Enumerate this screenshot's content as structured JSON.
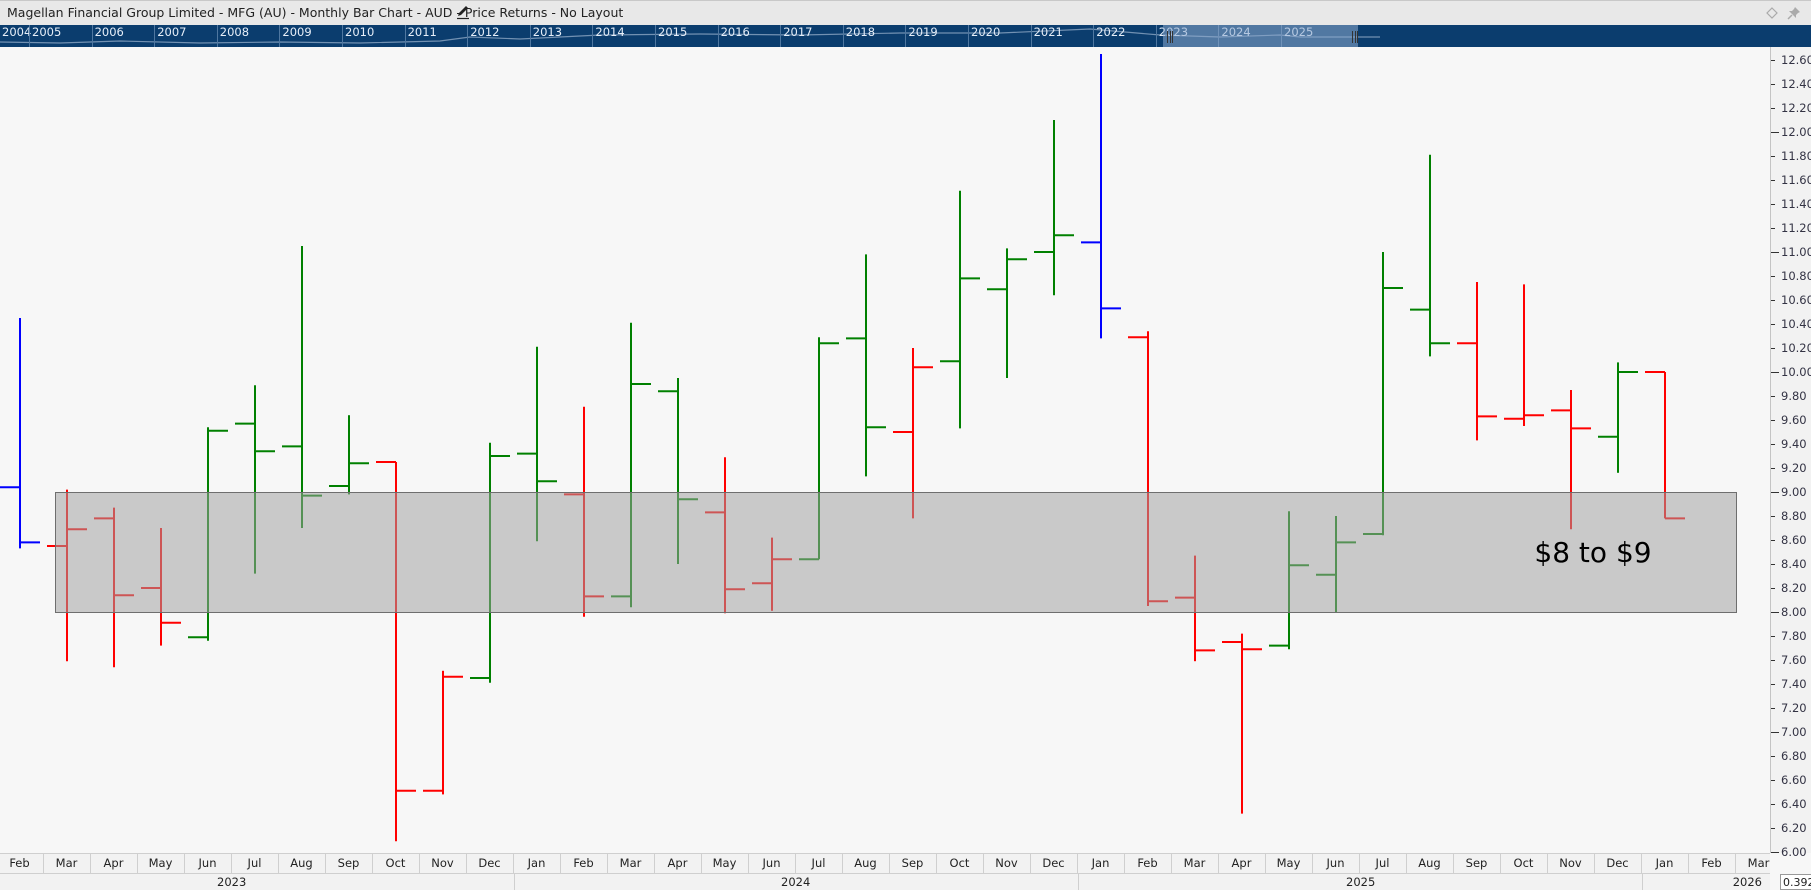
{
  "header": {
    "title": "Magellan Financial Group Limited - MFG (AU) - Monthly Bar Chart - AUD - Price Returns - No Layout",
    "icons": [
      "edit-pencil-icon",
      "diamond-icon",
      "pin-icon"
    ]
  },
  "navigator": {
    "years": [
      "2004",
      "2005",
      "2006",
      "2007",
      "2008",
      "2009",
      "2010",
      "2011",
      "2012",
      "2013",
      "2014",
      "2015",
      "2016",
      "2017",
      "2018",
      "2019",
      "2020",
      "2021",
      "2022",
      "2023",
      "2024",
      "2025"
    ],
    "selected_range": [
      "2023",
      "2025"
    ]
  },
  "value_readout": "0.392",
  "colors": {
    "up": "#008000",
    "down": "#ff0000",
    "highlight": "#0000ff",
    "navigator": "#0b3d6e",
    "zone": "#c9c9c9"
  },
  "chart_data": {
    "type": "bar",
    "subtype": "ohlc",
    "title": "Magellan Financial Group Limited - MFG (AU) - Monthly Bar Chart - AUD - Price Returns - No Layout",
    "ylim": [
      6.0,
      12.6
    ],
    "y_scale": "linear",
    "y_ticks": [
      "6.00",
      "6.20",
      "6.40",
      "6.60",
      "6.80",
      "7.00",
      "7.20",
      "7.40",
      "7.60",
      "7.80",
      "8.00",
      "8.20",
      "8.40",
      "8.60",
      "8.80",
      "9.00",
      "9.20",
      "9.40",
      "9.60",
      "9.80",
      "10.00",
      "10.20",
      "10.40",
      "10.60",
      "10.80",
      "11.00",
      "11.20",
      "11.40",
      "11.60",
      "11.80",
      "12.00",
      "12.20",
      "12.40",
      "12.60"
    ],
    "x_months": [
      "Feb",
      "Mar",
      "Apr",
      "May",
      "Jun",
      "Jul",
      "Aug",
      "Sep",
      "Oct",
      "Nov",
      "Dec",
      "Jan",
      "Feb",
      "Mar",
      "Apr",
      "May",
      "Jun",
      "Jul",
      "Aug",
      "Sep",
      "Oct",
      "Nov",
      "Dec",
      "Jan",
      "Feb",
      "Mar",
      "Apr",
      "May",
      "Jun",
      "Jul",
      "Aug",
      "Sep",
      "Oct",
      "Nov",
      "Dec",
      "Jan",
      "Feb",
      "Mar"
    ],
    "x_years": [
      "2023",
      "2024",
      "2025",
      "2026"
    ],
    "grid": false,
    "bars": [
      {
        "month": "Feb 2023",
        "o": 9.04,
        "h": 10.45,
        "l": 8.53,
        "c": 8.58,
        "color": "blue"
      },
      {
        "month": "Mar 2023",
        "o": 8.55,
        "h": 9.02,
        "l": 7.59,
        "c": 8.69,
        "color": "red"
      },
      {
        "month": "Apr 2023",
        "o": 8.78,
        "h": 8.87,
        "l": 7.54,
        "c": 8.14,
        "color": "red"
      },
      {
        "month": "May 2023",
        "o": 8.2,
        "h": 8.7,
        "l": 7.72,
        "c": 7.91,
        "color": "red"
      },
      {
        "month": "Jun 2023",
        "o": 7.79,
        "h": 9.54,
        "l": 7.76,
        "c": 9.51,
        "color": "green"
      },
      {
        "month": "Jul 2023",
        "o": 9.57,
        "h": 9.89,
        "l": 8.32,
        "c": 9.34,
        "color": "green"
      },
      {
        "month": "Aug 2023",
        "o": 9.38,
        "h": 11.05,
        "l": 8.7,
        "c": 8.97,
        "color": "green"
      },
      {
        "month": "Sep 2023",
        "o": 9.05,
        "h": 9.64,
        "l": 8.98,
        "c": 9.24,
        "color": "green"
      },
      {
        "month": "Oct 2023",
        "o": 9.25,
        "h": 9.25,
        "l": 6.09,
        "c": 6.51,
        "color": "red"
      },
      {
        "month": "Nov 2023",
        "o": 6.51,
        "h": 7.51,
        "l": 6.48,
        "c": 7.46,
        "color": "red"
      },
      {
        "month": "Dec 2023",
        "o": 7.45,
        "h": 9.41,
        "l": 7.41,
        "c": 9.3,
        "color": "green"
      },
      {
        "month": "Jan 2024",
        "o": 9.32,
        "h": 10.21,
        "l": 8.59,
        "c": 9.09,
        "color": "green"
      },
      {
        "month": "Feb 2024",
        "o": 8.98,
        "h": 9.71,
        "l": 7.96,
        "c": 8.13,
        "color": "red"
      },
      {
        "month": "Mar 2024",
        "o": 8.13,
        "h": 10.41,
        "l": 8.04,
        "c": 9.9,
        "color": "green"
      },
      {
        "month": "Apr 2024",
        "o": 9.84,
        "h": 9.95,
        "l": 8.4,
        "c": 8.94,
        "color": "green"
      },
      {
        "month": "May 2024",
        "o": 8.83,
        "h": 9.29,
        "l": 7.99,
        "c": 8.19,
        "color": "red"
      },
      {
        "month": "Jun 2024",
        "o": 8.24,
        "h": 8.62,
        "l": 8.01,
        "c": 8.44,
        "color": "red"
      },
      {
        "month": "Jul 2024",
        "o": 8.44,
        "h": 10.29,
        "l": 8.44,
        "c": 10.24,
        "color": "green"
      },
      {
        "month": "Aug 2024",
        "o": 10.28,
        "h": 10.98,
        "l": 9.13,
        "c": 9.54,
        "color": "green"
      },
      {
        "month": "Sep 2024",
        "o": 9.5,
        "h": 10.2,
        "l": 8.78,
        "c": 10.04,
        "color": "red"
      },
      {
        "month": "Oct 2024",
        "o": 10.09,
        "h": 11.51,
        "l": 9.53,
        "c": 10.78,
        "color": "green"
      },
      {
        "month": "Nov 2024",
        "o": 10.69,
        "h": 11.03,
        "l": 9.95,
        "c": 10.94,
        "color": "green"
      },
      {
        "month": "Dec 2024",
        "o": 11.0,
        "h": 12.1,
        "l": 10.64,
        "c": 11.14,
        "color": "green"
      },
      {
        "month": "Jan 2025",
        "o": 11.08,
        "h": 12.65,
        "l": 10.28,
        "c": 10.53,
        "color": "blue"
      },
      {
        "month": "Feb 2025",
        "o": 10.29,
        "h": 10.34,
        "l": 8.05,
        "c": 8.09,
        "color": "red"
      },
      {
        "month": "Mar 2025",
        "o": 8.12,
        "h": 8.47,
        "l": 7.59,
        "c": 7.68,
        "color": "red"
      },
      {
        "month": "Apr 2025",
        "o": 7.75,
        "h": 7.82,
        "l": 6.32,
        "c": 7.69,
        "color": "red"
      },
      {
        "month": "May 2025",
        "o": 7.72,
        "h": 8.84,
        "l": 7.69,
        "c": 8.39,
        "color": "green"
      },
      {
        "month": "Jun 2025",
        "o": 8.31,
        "h": 8.8,
        "l": 8.0,
        "c": 8.58,
        "color": "green"
      },
      {
        "month": "Jul 2025",
        "o": 8.65,
        "h": 11.0,
        "l": 8.64,
        "c": 10.7,
        "color": "green"
      },
      {
        "month": "Aug 2025",
        "o": 10.52,
        "h": 11.81,
        "l": 10.13,
        "c": 10.24,
        "color": "green"
      },
      {
        "month": "Sep 2025",
        "o": 10.24,
        "h": 10.75,
        "l": 9.43,
        "c": 9.63,
        "color": "red"
      },
      {
        "month": "Oct 2025",
        "o": 9.61,
        "h": 10.73,
        "l": 9.55,
        "c": 9.64,
        "color": "red"
      },
      {
        "month": "Nov 2025",
        "o": 9.68,
        "h": 9.85,
        "l": 8.69,
        "c": 9.53,
        "color": "red"
      },
      {
        "month": "Dec 2025",
        "o": 9.46,
        "h": 10.08,
        "l": 9.16,
        "c": 10.0,
        "color": "green"
      },
      {
        "month": "Jan 2026",
        "o": 10.0,
        "h": 10.0,
        "l": 8.78,
        "c": 8.78,
        "color": "red"
      }
    ],
    "annotations": [
      {
        "type": "rectangle",
        "from_price": 8.0,
        "to_price": 9.0,
        "start_month": "Mar 2023",
        "label": "$8 to $9"
      }
    ]
  }
}
